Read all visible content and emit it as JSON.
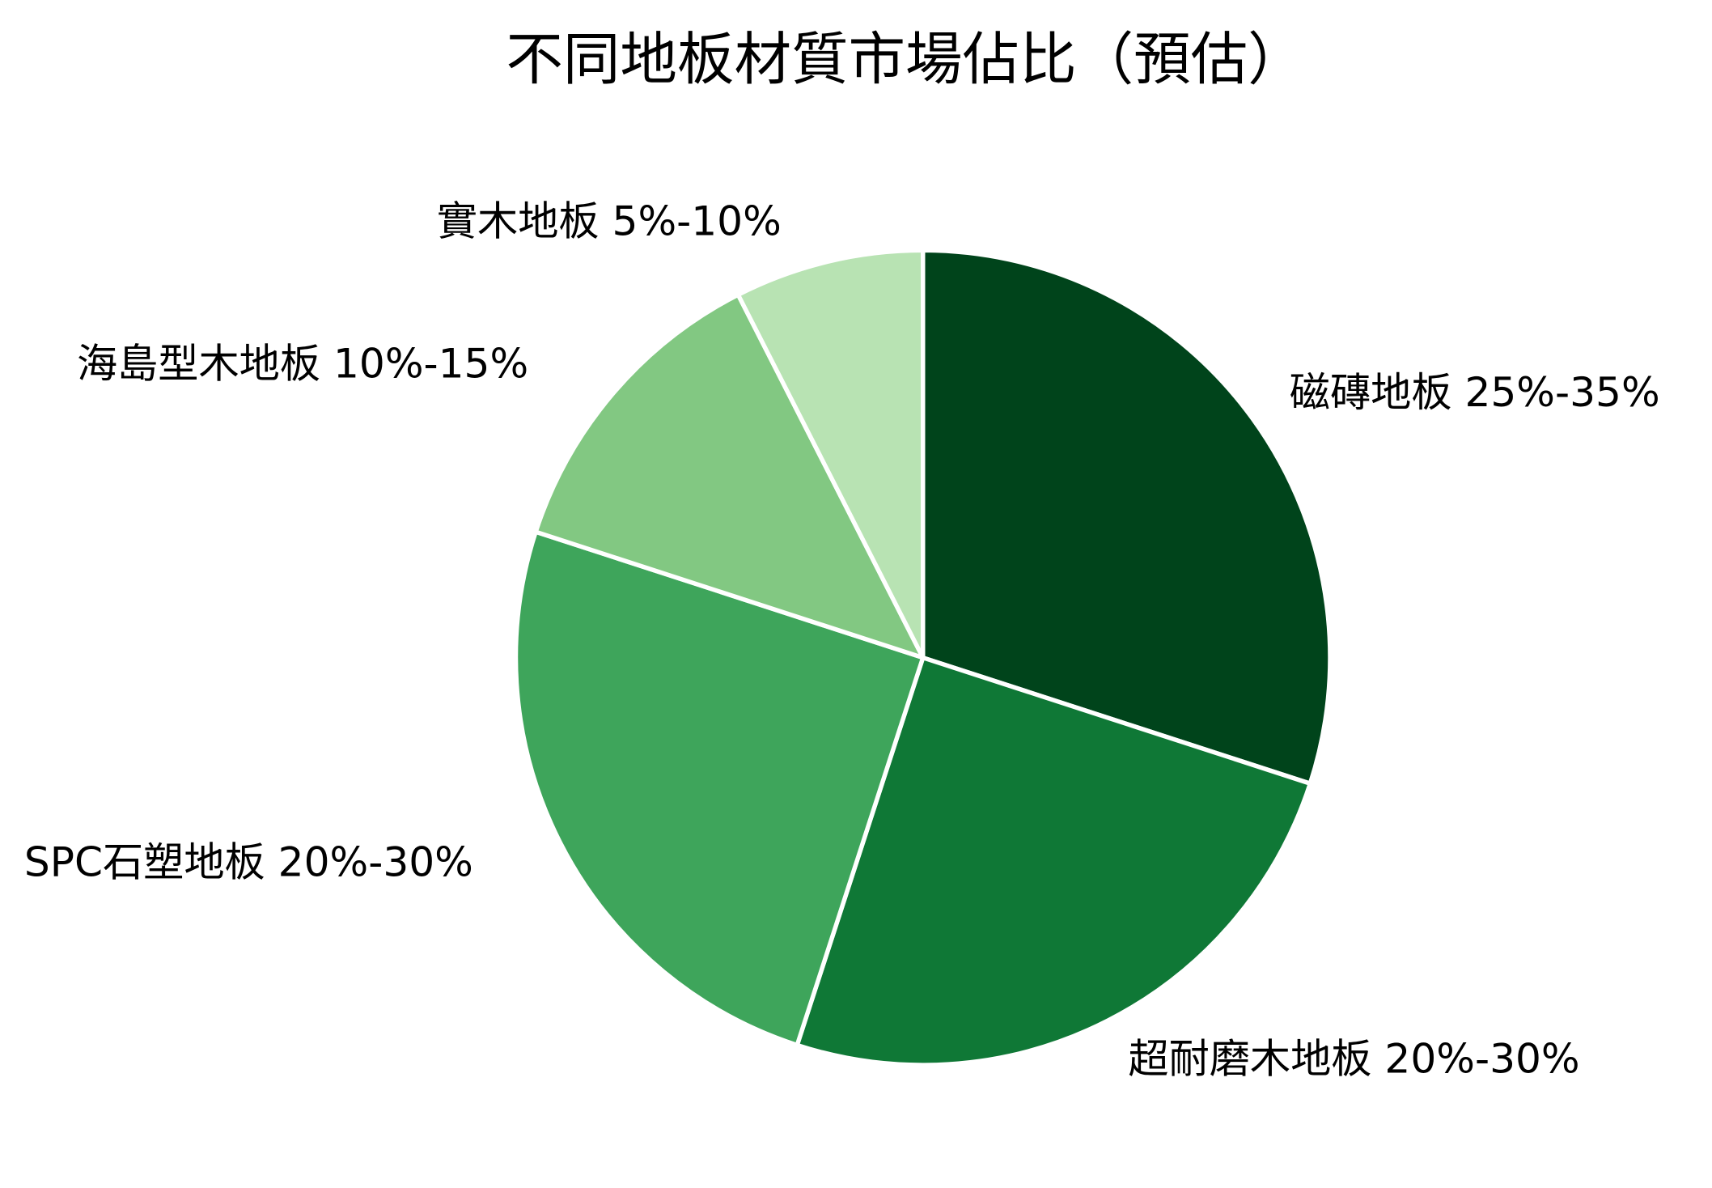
{
  "chart_data": {
    "type": "pie",
    "title": "不同地板材質市場佔比（預估）",
    "start_angle": "top",
    "direction": "clockwise",
    "slices": [
      {
        "label": "磁磚地板 25%-35%",
        "value": 30,
        "color": "#00441b"
      },
      {
        "label": "超耐磨木地板 20%-30%",
        "value": 25,
        "color": "#0f7836"
      },
      {
        "label": "SPC石塑地板 20%-30%",
        "value": 25,
        "color": "#3ea55b"
      },
      {
        "label": "海島型木地板 10%-15%",
        "value": 12.5,
        "color": "#82c882"
      },
      {
        "label": "實木地板 5%-10%",
        "value": 7.5,
        "color": "#b8e3b3"
      }
    ],
    "slice_border_color": "#ffffff"
  }
}
